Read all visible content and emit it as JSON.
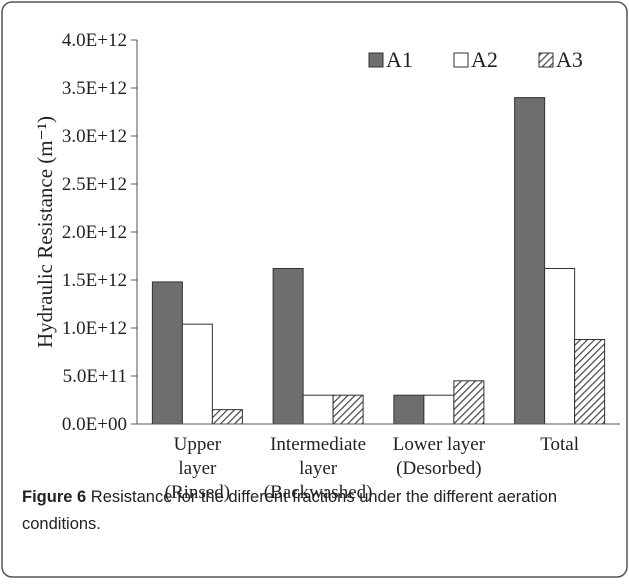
{
  "chart_data": {
    "type": "bar",
    "ylabel": "Hydraulic Resistance (m⁻¹)",
    "categories": [
      "Upper\nlayer\n(Rinsed)",
      "Intermediate\nlayer\n(Backwashed)",
      "Lower layer\n(Desorbed)",
      "Total"
    ],
    "series": [
      {
        "name": "A1",
        "color": "#6e6e6e",
        "values": [
          1480000000000.0,
          1620000000000.0,
          300000000000.0,
          3400000000000.0
        ]
      },
      {
        "name": "A2",
        "color": "#ffffff",
        "values": [
          1040000000000.0,
          300000000000.0,
          300000000000.0,
          1620000000000.0
        ]
      },
      {
        "name": "A3",
        "color": "#444444",
        "hatch": true,
        "values": [
          150000000000.0,
          300000000000.0,
          450000000000.0,
          880000000000.0
        ]
      }
    ],
    "ylim": [
      0,
      4000000000000.0
    ],
    "yticks": [
      {
        "value": 0,
        "label": "0.0E+00"
      },
      {
        "value": 500000000000.0,
        "label": "5.0E+11"
      },
      {
        "value": 1000000000000.0,
        "label": "1.0E+12"
      },
      {
        "value": 1500000000000.0,
        "label": "1.5E+12"
      },
      {
        "value": 2000000000000.0,
        "label": "2.0E+12"
      },
      {
        "value": 2500000000000.0,
        "label": "2.5E+12"
      },
      {
        "value": 3000000000000.0,
        "label": "3.0E+12"
      },
      {
        "value": 3500000000000.0,
        "label": "3.5E+12"
      },
      {
        "value": 4000000000000.0,
        "label": "4.0E+12"
      }
    ],
    "legend": "top-right",
    "grid": false
  },
  "caption": {
    "label": "Figure 6",
    "text": "Resistance for the different fractions under the different aeration conditions."
  }
}
